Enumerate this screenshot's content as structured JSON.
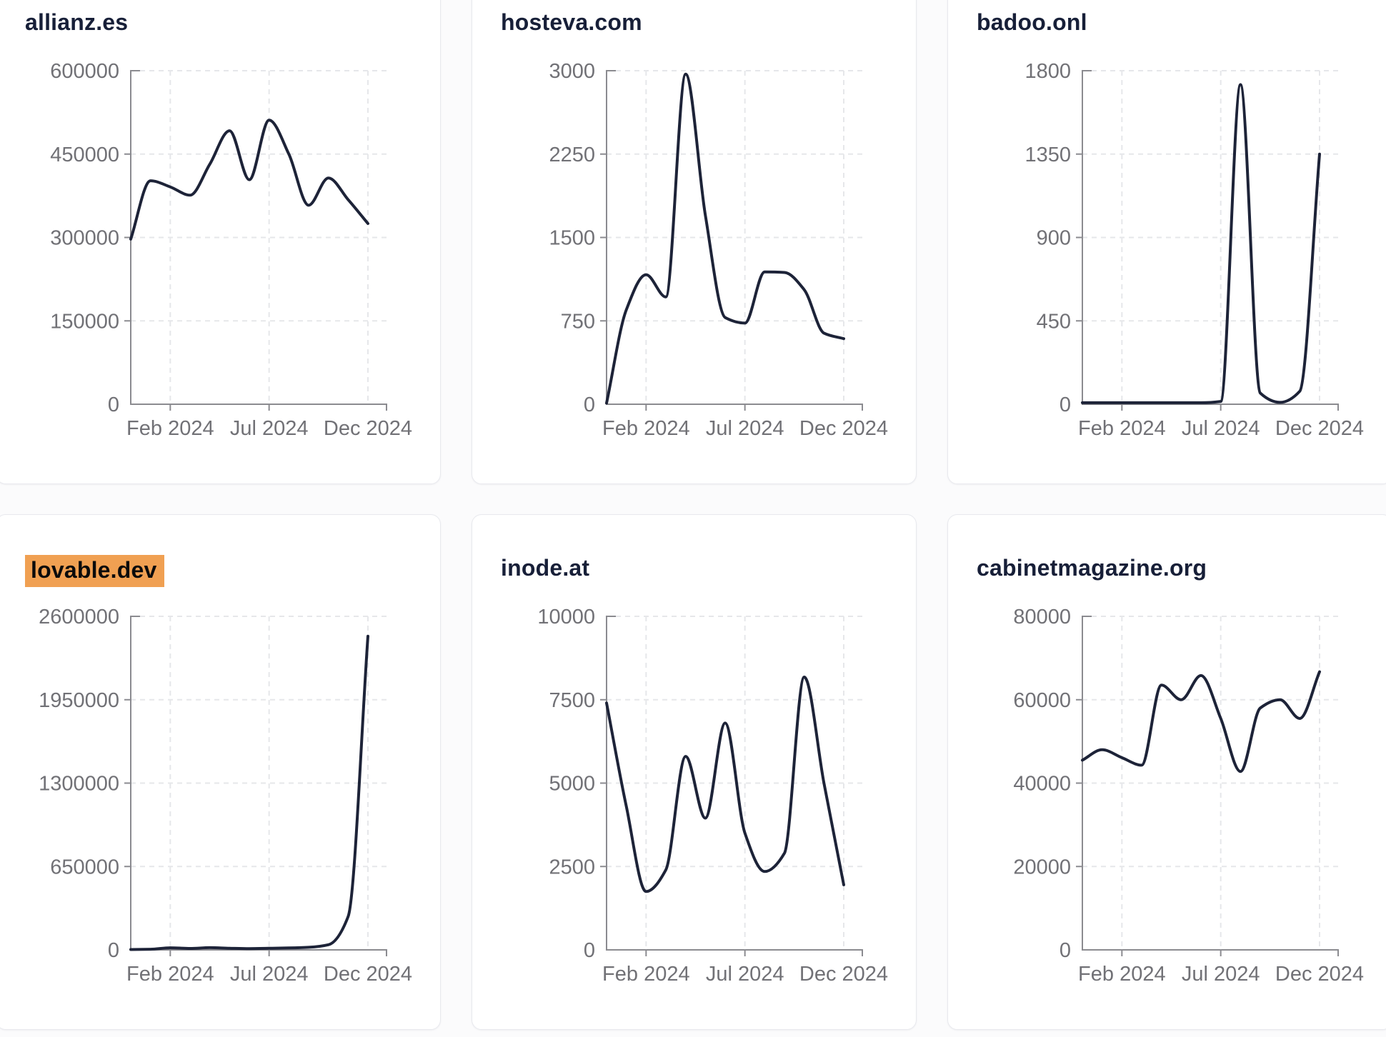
{
  "x_axis_tick_labels": [
    "Feb 2024",
    "Jul 2024",
    "Dec 2024"
  ],
  "colors": {
    "line": "#1d2338",
    "title": "#171f38",
    "tick_text": "#717176",
    "axis": "#8b8b90",
    "gridline": "#e6e7ea",
    "highlight": "#f0a052",
    "card_background": "#ffffff",
    "card_border": "#e8e9ee"
  },
  "chart_data": [
    {
      "type": "line",
      "title": "allianz.es",
      "highlighted": false,
      "x": [
        "2023-12",
        "2024-01",
        "2024-02",
        "2024-03",
        "2024-04",
        "2024-05",
        "2024-06",
        "2024-07",
        "2024-08",
        "2024-09",
        "2024-10",
        "2024-11",
        "2024-12"
      ],
      "values": [
        297000,
        402000,
        391000,
        376000,
        432000,
        492000,
        404000,
        511000,
        450000,
        358000,
        407000,
        368000,
        325000
      ],
      "ylim": [
        0,
        600000
      ],
      "yticks": [
        0,
        150000,
        300000,
        450000,
        600000
      ],
      "xticks": [
        "Feb 2024",
        "Jul 2024",
        "Dec 2024"
      ],
      "grid": true,
      "legend": false
    },
    {
      "type": "line",
      "title": "hosteva.com",
      "highlighted": false,
      "x": [
        "2023-12",
        "2024-01",
        "2024-02",
        "2024-03",
        "2024-04",
        "2024-05",
        "2024-06",
        "2024-07",
        "2024-08",
        "2024-09",
        "2024-10",
        "2024-11",
        "2024-12"
      ],
      "values": [
        10,
        850,
        1165,
        965,
        2970,
        1700,
        780,
        730,
        1190,
        1185,
        1030,
        640,
        590
      ],
      "ylim": [
        0,
        3000
      ],
      "yticks": [
        0,
        750,
        1500,
        2250,
        3000
      ],
      "xticks": [
        "Feb 2024",
        "Jul 2024",
        "Dec 2024"
      ],
      "grid": true,
      "legend": false
    },
    {
      "type": "line",
      "title": "badoo.onl",
      "highlighted": false,
      "x": [
        "2023-12",
        "2024-01",
        "2024-02",
        "2024-03",
        "2024-04",
        "2024-05",
        "2024-06",
        "2024-07",
        "2024-08",
        "2024-09",
        "2024-10",
        "2024-11",
        "2024-12"
      ],
      "values": [
        8,
        8,
        8,
        8,
        8,
        8,
        8,
        15,
        1725,
        60,
        10,
        70,
        1350
      ],
      "ylim": [
        0,
        1800
      ],
      "yticks": [
        0,
        450,
        900,
        1350,
        1800
      ],
      "xticks": [
        "Feb 2024",
        "Jul 2024",
        "Dec 2024"
      ],
      "grid": true,
      "legend": false
    },
    {
      "type": "line",
      "title": "lovable.dev",
      "highlighted": true,
      "x": [
        "2023-12",
        "2024-01",
        "2024-02",
        "2024-03",
        "2024-04",
        "2024-05",
        "2024-06",
        "2024-07",
        "2024-08",
        "2024-09",
        "2024-10",
        "2024-11",
        "2024-12"
      ],
      "values": [
        3000,
        5000,
        16000,
        11000,
        17000,
        13000,
        10000,
        12000,
        15000,
        20000,
        40000,
        260000,
        2445000
      ],
      "ylim": [
        0,
        2600000
      ],
      "yticks": [
        0,
        650000,
        1300000,
        1950000,
        2600000
      ],
      "xticks": [
        "Feb 2024",
        "Jul 2024",
        "Dec 2024"
      ],
      "grid": true,
      "legend": false
    },
    {
      "type": "line",
      "title": "inode.at",
      "highlighted": false,
      "x": [
        "2023-12",
        "2024-01",
        "2024-02",
        "2024-03",
        "2024-04",
        "2024-05",
        "2024-06",
        "2024-07",
        "2024-08",
        "2024-09",
        "2024-10",
        "2024-11",
        "2024-12"
      ],
      "values": [
        7400,
        4300,
        1750,
        2400,
        5800,
        3950,
        6800,
        3500,
        2350,
        2900,
        8180,
        5000,
        1950
      ],
      "ylim": [
        0,
        10000
      ],
      "yticks": [
        0,
        2500,
        5000,
        7500,
        10000
      ],
      "xticks": [
        "Feb 2024",
        "Jul 2024",
        "Dec 2024"
      ],
      "grid": true,
      "legend": false
    },
    {
      "type": "line",
      "title": "cabinetmagazine.org",
      "highlighted": false,
      "x": [
        "2023-12",
        "2024-01",
        "2024-02",
        "2024-03",
        "2024-04",
        "2024-05",
        "2024-06",
        "2024-07",
        "2024-08",
        "2024-09",
        "2024-10",
        "2024-11",
        "2024-12"
      ],
      "values": [
        45500,
        48000,
        46100,
        44300,
        63500,
        60000,
        65800,
        55500,
        42800,
        58000,
        60000,
        55500,
        66700
      ],
      "ylim": [
        0,
        80000
      ],
      "yticks": [
        0,
        20000,
        40000,
        60000,
        80000
      ],
      "xticks": [
        "Feb 2024",
        "Jul 2024",
        "Dec 2024"
      ],
      "grid": true,
      "legend": false
    }
  ]
}
